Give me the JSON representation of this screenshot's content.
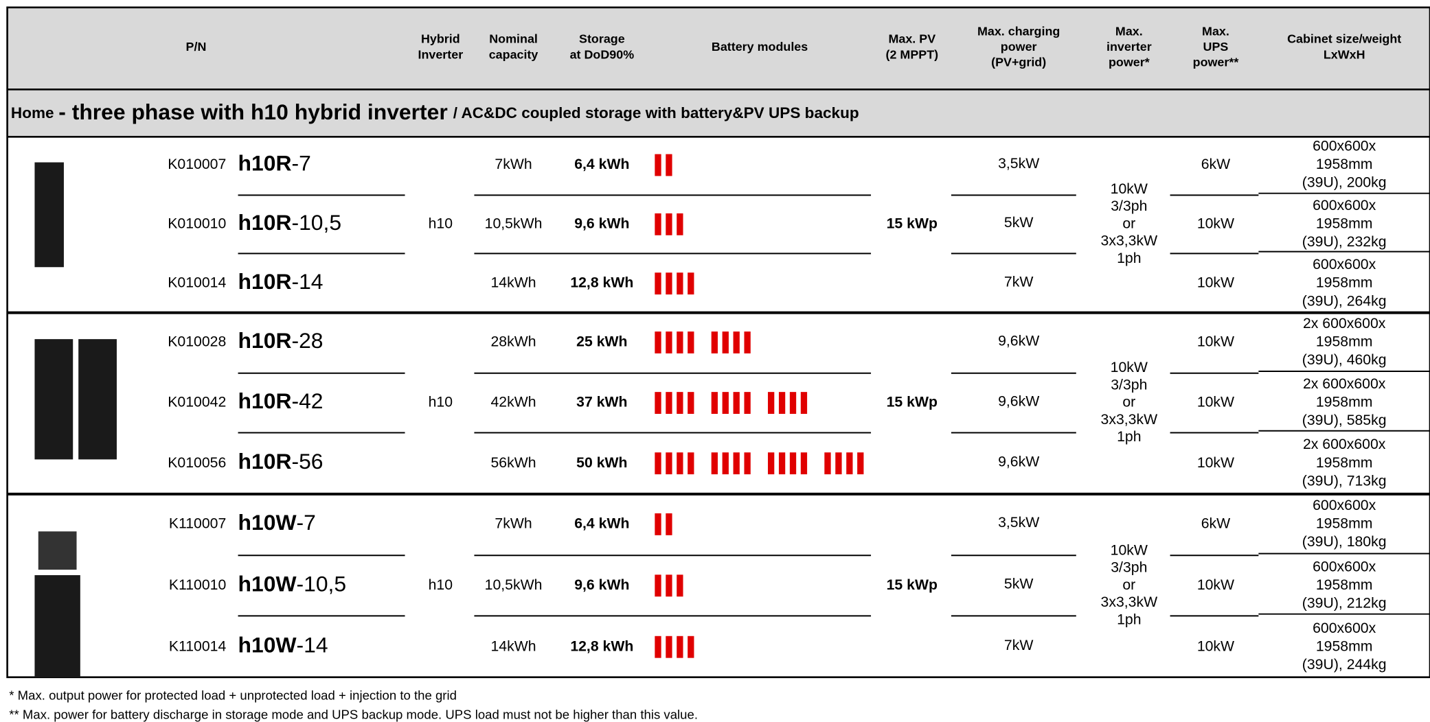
{
  "header": {
    "columns": [
      [
        "P/N"
      ],
      [
        "Hybrid",
        "Inverter"
      ],
      [
        "Nominal",
        "capacity"
      ],
      [
        "Storage",
        "at DoD90%"
      ],
      [
        "Battery modules"
      ],
      [
        "Max. PV",
        "(2 MPPT)"
      ],
      [
        "Max. charging",
        "power",
        "(PV+grid)"
      ],
      [
        "Max.",
        "inverter",
        "power*"
      ],
      [
        "Max.",
        "UPS",
        "power**"
      ],
      [
        "Cabinet size/weight",
        "LxWxH"
      ]
    ]
  },
  "section": {
    "lead": "Home",
    "title": "- three phase with h10 hybrid inverter",
    "subtitle": "/ AC&DC coupled storage with battery&PV UPS backup"
  },
  "groups": [
    {
      "inverter": "h10",
      "pv": "15 kWp",
      "inverter_power": [
        "10kW",
        "3/3ph",
        "or",
        "3x3,3kW",
        "1ph"
      ],
      "rows": [
        {
          "pn": "K010007",
          "model": "h10R",
          "suffix": "-7",
          "nominal": "7kWh",
          "storage": "6,4 kWh",
          "modules": 2,
          "charging": "3,5kW",
          "ups": "6kW",
          "cabinet": [
            "600x600x",
            "1958mm",
            "(39U), 200kg"
          ]
        },
        {
          "pn": "K010010",
          "model": "h10R",
          "suffix": "-10,5",
          "nominal": "10,5kWh",
          "storage": "9,6 kWh",
          "modules": 3,
          "charging": "5kW",
          "ups": "10kW",
          "cabinet": [
            "600x600x",
            "1958mm",
            "(39U), 232kg"
          ]
        },
        {
          "pn": "K010014",
          "model": "h10R",
          "suffix": "-14",
          "nominal": "14kWh",
          "storage": "12,8 kWh",
          "modules": 4,
          "charging": "7kW",
          "ups": "10kW",
          "cabinet": [
            "600x600x",
            "1958mm",
            "(39U), 264kg"
          ]
        }
      ]
    },
    {
      "inverter": "h10",
      "pv": "15 kWp",
      "inverter_power": [
        "10kW",
        "3/3ph",
        "or",
        "3x3,3kW",
        "1ph"
      ],
      "rows": [
        {
          "pn": "K010028",
          "model": "h10R",
          "suffix": "-28",
          "nominal": "28kWh",
          "storage": "25 kWh",
          "modules": 8,
          "charging": "9,6kW",
          "ups": "10kW",
          "cabinet": [
            "2x 600x600x",
            "1958mm",
            "(39U), 460kg"
          ]
        },
        {
          "pn": "K010042",
          "model": "h10R",
          "suffix": "-42",
          "nominal": "42kWh",
          "storage": "37 kWh",
          "modules": 12,
          "charging": "9,6kW",
          "ups": "10kW",
          "cabinet": [
            "2x 600x600x",
            "1958mm",
            "(39U), 585kg"
          ]
        },
        {
          "pn": "K010056",
          "model": "h10R",
          "suffix": "-56",
          "nominal": "56kWh",
          "storage": "50 kWh",
          "modules": 16,
          "charging": "9,6kW",
          "ups": "10kW",
          "cabinet": [
            "2x 600x600x",
            "1958mm",
            "(39U), 713kg"
          ]
        }
      ]
    },
    {
      "inverter": "h10",
      "pv": "15 kWp",
      "inverter_power": [
        "10kW",
        "3/3ph",
        "or",
        "3x3,3kW",
        "1ph"
      ],
      "rows": [
        {
          "pn": "K110007",
          "model": "h10W",
          "suffix": "-7",
          "nominal": "7kWh",
          "storage": "6,4 kWh",
          "modules": 2,
          "charging": "3,5kW",
          "ups": "6kW",
          "cabinet": [
            "600x600x",
            "1958mm",
            "(39U), 180kg"
          ]
        },
        {
          "pn": "K110010",
          "model": "h10W",
          "suffix": "-10,5",
          "nominal": "10,5kWh",
          "storage": "9,6 kWh",
          "modules": 3,
          "charging": "5kW",
          "ups": "10kW",
          "cabinet": [
            "600x600x",
            "1958mm",
            "(39U), 212kg"
          ]
        },
        {
          "pn": "K110014",
          "model": "h10W",
          "suffix": "-14",
          "nominal": "14kWh",
          "storage": "12,8 kWh",
          "modules": 4,
          "charging": "7kW",
          "ups": "10kW",
          "cabinet": [
            "600x600x",
            "1958mm",
            "(39U), 244kg"
          ]
        }
      ]
    }
  ],
  "footnotes": [
    "* Max. output power for protected load + unprotected load + injection to the grid",
    "** Max. power for battery discharge in storage mode and UPS backup mode. UPS load must not be higher than this value."
  ]
}
